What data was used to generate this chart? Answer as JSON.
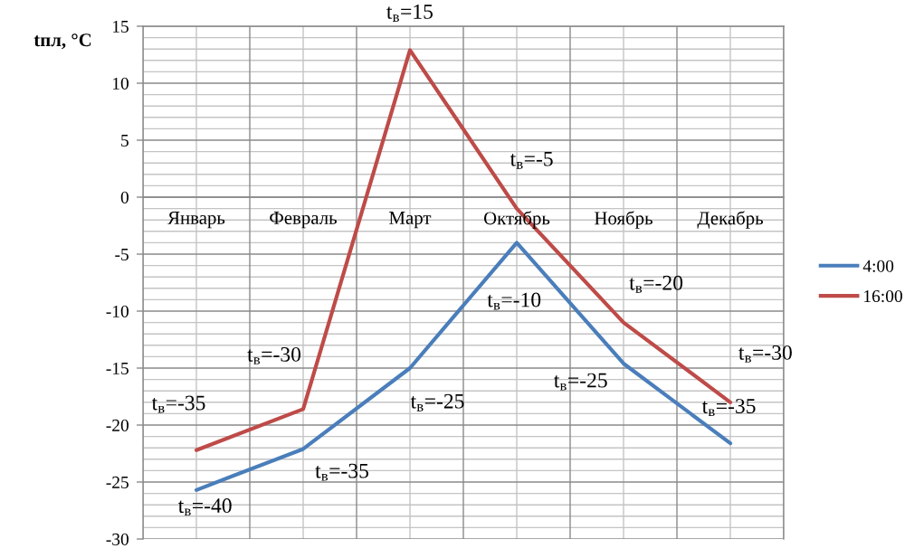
{
  "chart_data": {
    "type": "line",
    "ylabel": "tпл, °C",
    "categories": [
      "Январь",
      "Февраль",
      "Март",
      "Октябрь",
      "Ноябрь",
      "Декабрь"
    ],
    "series": [
      {
        "name": "4:00",
        "color": "#4a7ebb",
        "values": [
          -25.7,
          -22.1,
          -15,
          -4,
          -14.6,
          -21.6
        ]
      },
      {
        "name": "16:00",
        "color": "#be4b48",
        "values": [
          -22.2,
          -18.6,
          12.9,
          -1,
          -11,
          -18
        ]
      }
    ],
    "ylim": [
      -30,
      15
    ],
    "yticks": [
      -30,
      -25,
      -20,
      -15,
      -10,
      -5,
      0,
      5,
      10,
      15
    ],
    "grid": true,
    "legend": "right",
    "annotations": [
      {
        "text": "t$_{в}$=-35",
        "x": "Январь",
        "y": -22.2
      },
      {
        "text": "t$_{в}$=-40",
        "x": "Январь",
        "y": -25.7
      },
      {
        "text": "t$_{в}$=-30",
        "x": "Февраль",
        "y": -18.6
      },
      {
        "text": "t$_{в}$=-35",
        "x": "Февраль",
        "y": -22.1
      },
      {
        "text": "t$_{в}$=15",
        "x": "Март",
        "y": 12.9
      },
      {
        "text": "t$_{в}$=-25",
        "x": "Март",
        "y": -15
      },
      {
        "text": "t$_{в}$=-5",
        "x": "Октябрь",
        "y": -1
      },
      {
        "text": "t$_{в}$=-10",
        "x": "Октябрь",
        "y": -4
      },
      {
        "text": "t$_{в}$=-20",
        "x": "Ноябрь",
        "y": -11
      },
      {
        "text": "t$_{в}$=-25",
        "x": "Ноябрь",
        "y": -14.6
      },
      {
        "text": "t$_{в}$=-30",
        "x": "Декабрь",
        "y": -18
      },
      {
        "text": "t$_{в}$=-35",
        "x": "Декабрь",
        "y": -21.6
      }
    ]
  }
}
